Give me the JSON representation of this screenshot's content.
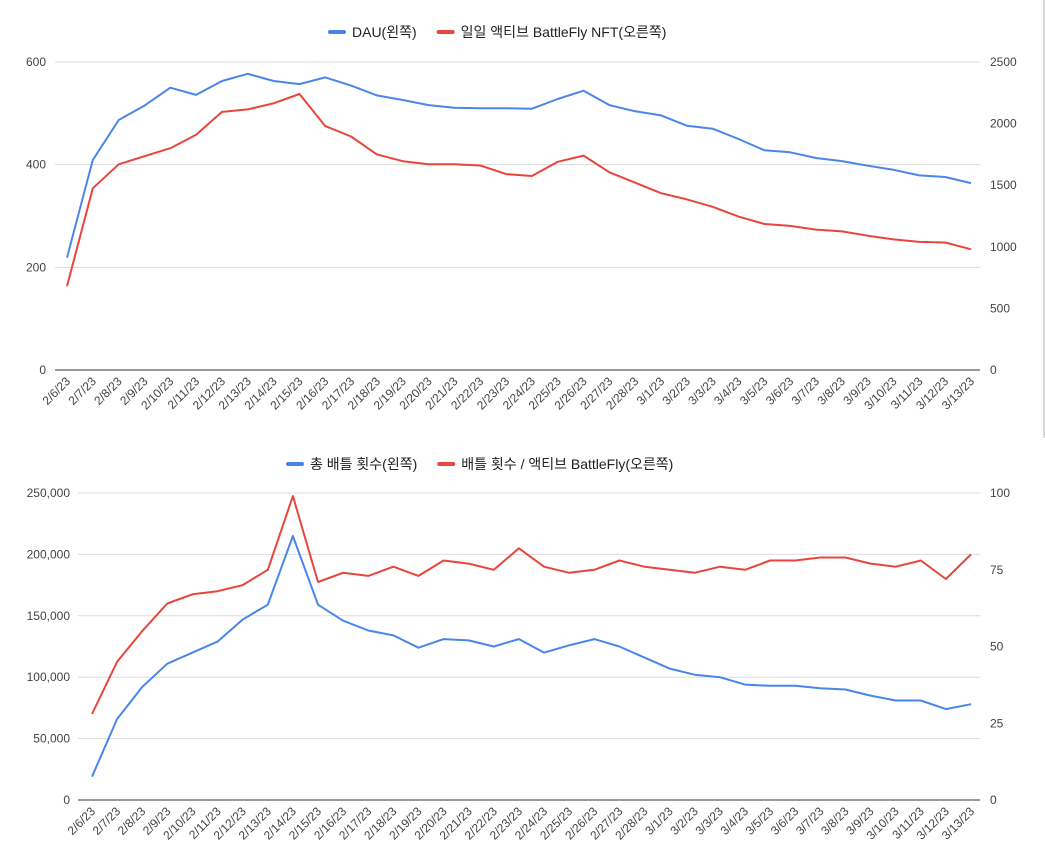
{
  "chart_data": [
    {
      "type": "line",
      "x": [
        "2/6/23",
        "2/7/23",
        "2/8/23",
        "2/9/23",
        "2/10/23",
        "2/11/23",
        "2/12/23",
        "2/13/23",
        "2/14/23",
        "2/15/23",
        "2/16/23",
        "2/17/23",
        "2/18/23",
        "2/19/23",
        "2/20/23",
        "2/21/23",
        "2/22/23",
        "2/23/23",
        "2/24/23",
        "2/25/23",
        "2/26/23",
        "2/27/23",
        "2/28/23",
        "3/1/23",
        "3/2/23",
        "3/3/23",
        "3/4/23",
        "3/5/23",
        "3/6/23",
        "3/7/23",
        "3/8/23",
        "3/9/23",
        "3/10/23",
        "3/11/23",
        "3/12/23",
        "3/13/23"
      ],
      "series": [
        {
          "name": "DAU(왼쪽)",
          "axis": "left",
          "color": "#4a86e8",
          "values": [
            219,
            409,
            487,
            515,
            550,
            536,
            563,
            577,
            563,
            557,
            570,
            554,
            535,
            526,
            516,
            511,
            510,
            510,
            509,
            528,
            544,
            516,
            504,
            496,
            476,
            470,
            450,
            428,
            424,
            413,
            407,
            398,
            390,
            379,
            376,
            364
          ]
        },
        {
          "name": "일일 액티브 BattleFly NFT(오른쪽)",
          "axis": "right",
          "color": "#e8453c",
          "values": [
            680,
            1475,
            1670,
            1735,
            1800,
            1910,
            2095,
            2115,
            2165,
            2240,
            1980,
            1895,
            1750,
            1695,
            1670,
            1670,
            1660,
            1590,
            1575,
            1690,
            1740,
            1605,
            1520,
            1435,
            1385,
            1325,
            1245,
            1185,
            1170,
            1140,
            1125,
            1090,
            1060,
            1040,
            1035,
            980
          ]
        }
      ],
      "y_left": {
        "range": [
          0,
          600
        ],
        "ticks": [
          "0",
          "200",
          "400",
          "600"
        ]
      },
      "y_right": {
        "range": [
          0,
          2500
        ],
        "ticks": [
          "0",
          "500",
          "1000",
          "1500",
          "2000",
          "2500"
        ]
      },
      "grid": true,
      "legend": "top-center"
    },
    {
      "type": "line",
      "x": [
        "2/6/23",
        "2/7/23",
        "2/8/23",
        "2/9/23",
        "2/10/23",
        "2/11/23",
        "2/12/23",
        "2/13/23",
        "2/14/23",
        "2/15/23",
        "2/16/23",
        "2/17/23",
        "2/18/23",
        "2/19/23",
        "2/20/23",
        "2/21/23",
        "2/22/23",
        "2/23/23",
        "2/24/23",
        "2/25/23",
        "2/26/23",
        "2/27/23",
        "2/28/23",
        "3/1/23",
        "3/2/23",
        "3/3/23",
        "3/4/23",
        "3/5/23",
        "3/6/23",
        "3/7/23",
        "3/8/23",
        "3/9/23",
        "3/10/23",
        "3/11/23",
        "3/12/23",
        "3/13/23"
      ],
      "series": [
        {
          "name": "총 배틀 횟수(왼쪽)",
          "axis": "left",
          "color": "#4a86e8",
          "values": [
            19000,
            66000,
            92000,
            111000,
            120000,
            129000,
            147000,
            159000,
            215000,
            159000,
            146000,
            138000,
            134000,
            124000,
            131000,
            130000,
            125000,
            131000,
            120000,
            126000,
            131000,
            125000,
            116000,
            107000,
            102000,
            100000,
            94000,
            93000,
            93000,
            91000,
            90000,
            85000,
            81000,
            81000,
            74000,
            78000
          ]
        },
        {
          "name": "배틀 횟수 / 액티브 BattleFly(오른쪽)",
          "axis": "right",
          "color": "#e8453c",
          "values": [
            28,
            45,
            55,
            64,
            67,
            68,
            70,
            75,
            99,
            71,
            74,
            73,
            76,
            73,
            78,
            77,
            75,
            82,
            76,
            74,
            75,
            78,
            76,
            75,
            74,
            76,
            75,
            78,
            78,
            79,
            79,
            77,
            76,
            78,
            72,
            80
          ]
        }
      ],
      "y_left": {
        "range": [
          0,
          250000
        ],
        "ticks": [
          "0",
          "50,000",
          "100,000",
          "150,000",
          "200,000",
          "250,000"
        ]
      },
      "y_right": {
        "range": [
          0,
          100
        ],
        "ticks": [
          "0",
          "25",
          "50",
          "75",
          "100"
        ]
      },
      "grid": true,
      "legend": "top-center"
    }
  ]
}
